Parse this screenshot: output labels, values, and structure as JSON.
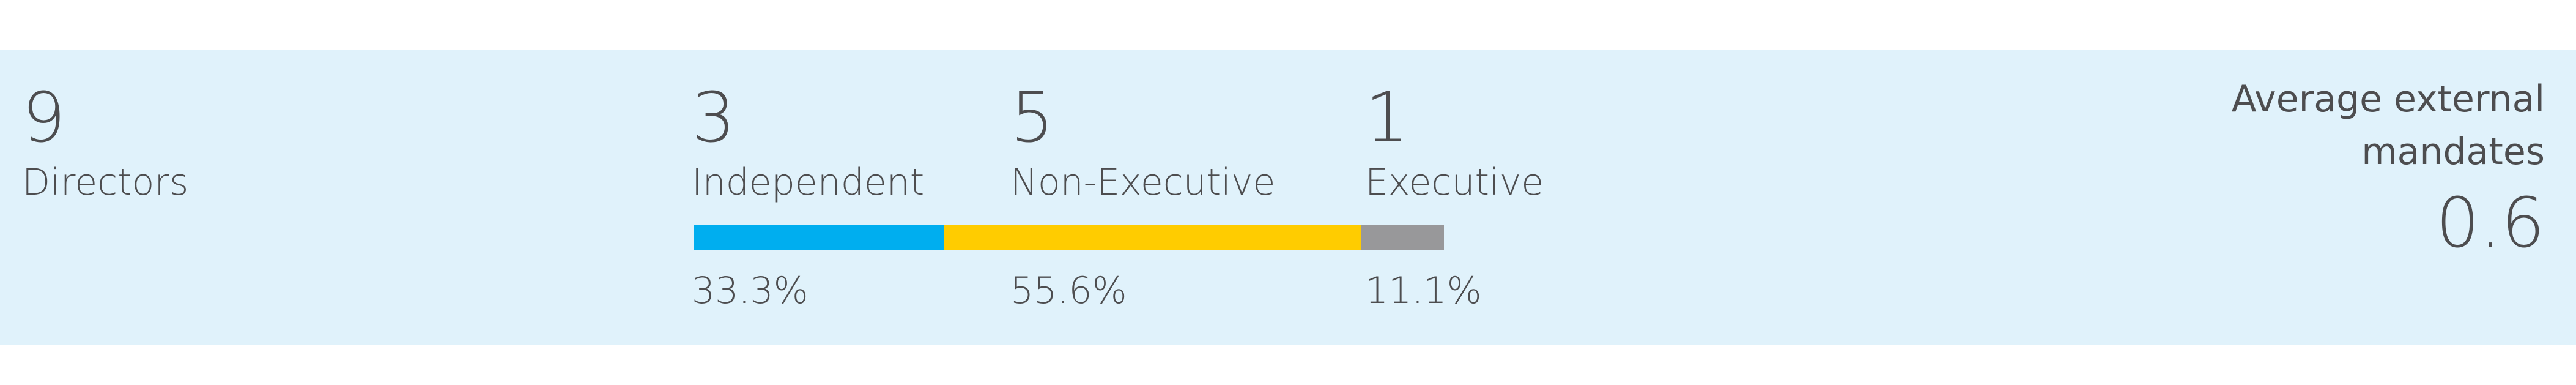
{
  "summary": {
    "total": {
      "count": 9,
      "label": "Directors"
    },
    "groups": [
      {
        "count": 3,
        "label": "Independent",
        "color": "#00aeef",
        "share": {
          "value": 33.3,
          "label": "33.3%"
        }
      },
      {
        "count": 5,
        "label": "Non-Executive",
        "color": "#ffcc00",
        "share": {
          "value": 55.6,
          "label": "55.6%"
        }
      },
      {
        "count": 1,
        "label": "Executive",
        "color": "#98989a",
        "share": {
          "value": 11.1,
          "label": "11.1%"
        }
      }
    ],
    "mandates": {
      "label": "Average external mandates",
      "value": 0.6
    }
  }
}
